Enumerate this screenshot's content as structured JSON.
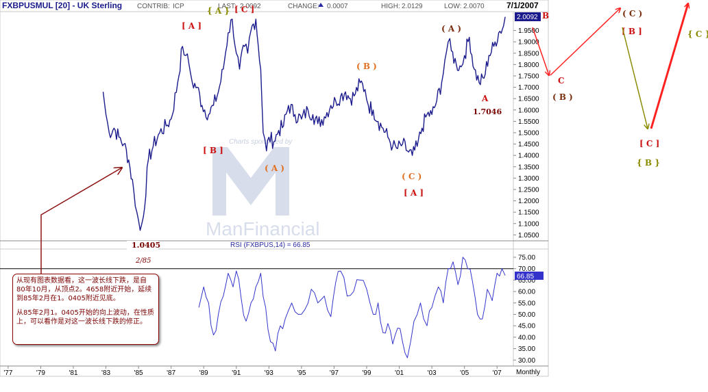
{
  "header": {
    "symbol": "FXBPUSMUL [20] - UK Sterling",
    "contrib_label": "CONTRIB:",
    "contrib_value": "ICP",
    "last_label": "LAST:",
    "last_value": "2.0092",
    "change_label": "CHANGE:",
    "change_value": "0.0007",
    "high_label": "HIGH:",
    "high_value": "2.0129",
    "low_label": "LOW:",
    "low_value": "2.0070",
    "date": "7/1/2007"
  },
  "watermark": {
    "sponsor_text": "Charts sponsored by",
    "brand": "ManFinancial"
  },
  "price_badge": "2.0092",
  "rsi_title": "RSI (FXBPUS,14) = 66.85",
  "rsi_badge": "66.85",
  "frequency_label": "Monthly",
  "colors": {
    "price_line": "#1a1a8c",
    "rsi_line": "#3333cc",
    "wave_red": "#cc1111",
    "wave_olive": "#8b8b00",
    "wave_orange": "#e07020",
    "wave_brown": "#7a3010",
    "arrow_red": "#ff2020",
    "arrow_olive": "#8b8b00",
    "arrow_darkred": "#8b1010"
  },
  "chart_data": [
    {
      "type": "line",
      "title": "FXBPUSMUL [20] - UK Sterling",
      "x_ticks": [
        "'77",
        "'79",
        "'81",
        "'83",
        "'85",
        "'87",
        "'89",
        "'91",
        "'93",
        "'95",
        "'97",
        "'99",
        "'01",
        "'03",
        "'05",
        "'07"
      ],
      "y_ticks": [
        "1.0500",
        "1.1000",
        "1.1500",
        "1.2000",
        "1.2500",
        "1.3000",
        "1.3500",
        "1.4000",
        "1.4500",
        "1.5000",
        "1.5500",
        "1.6000",
        "1.6500",
        "1.7000",
        "1.7500",
        "1.8000",
        "1.8500",
        "1.9000",
        "1.9500"
      ],
      "ylim": [
        1.03,
        2.03
      ],
      "xlim": [
        1976.5,
        2008.0
      ],
      "series": [
        {
          "x": [
            1982.83,
            1983.0,
            1983.2,
            1983.5,
            1983.8,
            1984.1,
            1984.4,
            1984.7,
            1984.9,
            1985.1,
            1985.3,
            1985.6,
            1985.9,
            1986.3,
            1986.7,
            1987.0,
            1987.4,
            1987.7,
            1987.9,
            1988.1,
            1988.3,
            1988.6,
            1988.9,
            1989.3,
            1989.6,
            1989.9,
            1990.2,
            1990.5,
            1990.75,
            1991.0,
            1991.2,
            1991.5,
            1991.7,
            1991.9,
            1992.2,
            1992.5,
            1992.65,
            1992.85,
            1993.0,
            1993.3,
            1993.6,
            1993.9,
            1994.2,
            1994.6,
            1995.0,
            1995.4,
            1995.7,
            1996.0,
            1996.4,
            1996.8,
            1997.1,
            1997.4,
            1997.7,
            1998.0,
            1998.3,
            1998.6,
            1998.9,
            1999.1,
            1999.4,
            1999.7,
            2000.0,
            2000.3,
            2000.6,
            2000.9,
            2001.2,
            2001.5,
            2001.8,
            2002.1,
            2002.4,
            2002.7,
            2003.0,
            2003.3,
            2003.6,
            2003.8,
            2004.0,
            2004.2,
            2004.5,
            2004.8,
            2005.0,
            2005.3,
            2005.6,
            2005.9,
            2006.2,
            2006.5,
            2006.8,
            2007.1,
            2007.4,
            2007.5
          ],
          "y": [
            1.68,
            1.58,
            1.5,
            1.52,
            1.48,
            1.45,
            1.38,
            1.25,
            1.15,
            1.07,
            1.13,
            1.38,
            1.44,
            1.5,
            1.53,
            1.56,
            1.72,
            1.88,
            1.84,
            1.8,
            1.72,
            1.7,
            1.62,
            1.58,
            1.62,
            1.68,
            1.78,
            1.94,
            2.0,
            1.85,
            1.78,
            1.88,
            1.85,
            1.95,
            2.0,
            1.78,
            1.5,
            1.42,
            1.48,
            1.46,
            1.51,
            1.53,
            1.62,
            1.58,
            1.56,
            1.6,
            1.58,
            1.54,
            1.57,
            1.62,
            1.64,
            1.66,
            1.68,
            1.65,
            1.67,
            1.72,
            1.69,
            1.62,
            1.6,
            1.55,
            1.52,
            1.48,
            1.44,
            1.43,
            1.45,
            1.42,
            1.4,
            1.44,
            1.52,
            1.58,
            1.58,
            1.64,
            1.72,
            1.82,
            1.9,
            1.86,
            1.8,
            1.79,
            1.84,
            1.92,
            1.78,
            1.72,
            1.74,
            1.84,
            1.88,
            1.94,
            1.97,
            2.01
          ]
        }
      ],
      "price_annotation": "1.0405",
      "date_annotation": "2/85",
      "low_annotation": "1.7046",
      "wave_labels": [
        {
          "text": "{ A }",
          "color": "#8b8b00"
        },
        {
          "text": "[ C ]",
          "color": "#cc1111"
        },
        {
          "text": "[ A ]",
          "color": "#cc1111"
        },
        {
          "text": "[ B ]",
          "color": "#cc1111"
        },
        {
          "text": "( A )",
          "color": "#e07020"
        },
        {
          "text": "( B )",
          "color": "#e07020"
        },
        {
          "text": "( C )",
          "color": "#e07020"
        },
        {
          "text": "[ A ]",
          "color": "#cc1111"
        },
        {
          "text": "( A )",
          "color": "#7a3010"
        },
        {
          "text": "A",
          "color": "#cc1111"
        },
        {
          "text": "B",
          "color": "#cc1111"
        },
        {
          "text": "C",
          "color": "#cc1111"
        },
        {
          "text": "( B )",
          "color": "#7a3010"
        },
        {
          "text": "( C )",
          "color": "#7a3010"
        },
        {
          "text": "[ B ]",
          "color": "#cc1111"
        },
        {
          "text": "[ C ]",
          "color": "#cc1111"
        },
        {
          "text": "{ B }",
          "color": "#8b8b00"
        },
        {
          "text": "{ C }",
          "color": "#8b8b00"
        }
      ]
    },
    {
      "type": "line",
      "title": "RSI (FXBPUS,14) = 66.85",
      "y_ticks": [
        "30.00",
        "35.00",
        "40.00",
        "45.00",
        "50.00",
        "55.00",
        "60.00",
        "65.00",
        "70.00",
        "75.00"
      ],
      "ylim": [
        28,
        78
      ],
      "reference_line": 70,
      "series": [
        {
          "x": [
            1988.7,
            1989.0,
            1989.3,
            1989.6,
            1989.9,
            1990.2,
            1990.5,
            1990.8,
            1991.0,
            1991.3,
            1991.6,
            1991.9,
            1992.2,
            1992.5,
            1992.8,
            1993.1,
            1993.4,
            1993.7,
            1994.0,
            1994.4,
            1994.8,
            1995.2,
            1995.6,
            1996.0,
            1996.4,
            1996.8,
            1997.1,
            1997.4,
            1997.8,
            1998.2,
            1998.6,
            1999.0,
            1999.4,
            1999.7,
            2000.0,
            2000.3,
            2000.6,
            2000.9,
            2001.2,
            2001.5,
            2001.9,
            2002.3,
            2002.7,
            2003.0,
            2003.4,
            2003.7,
            2004.0,
            2004.3,
            2004.6,
            2004.9,
            2005.2,
            2005.5,
            2005.8,
            2006.1,
            2006.4,
            2006.7,
            2007.0,
            2007.3,
            2007.5
          ],
          "y": [
            53,
            62,
            55,
            41,
            50,
            58,
            68,
            62,
            69,
            57,
            47,
            55,
            62,
            68,
            53,
            38,
            34,
            45,
            48,
            55,
            50,
            52,
            61,
            55,
            58,
            49,
            64,
            69,
            58,
            60,
            65,
            61,
            50,
            55,
            42,
            46,
            37,
            44,
            38,
            31,
            47,
            55,
            45,
            53,
            62,
            55,
            70,
            73,
            63,
            75,
            70,
            64,
            50,
            48,
            61,
            56,
            68,
            70,
            67
          ]
        }
      ]
    }
  ],
  "annotation_note": {
    "paragraph_1": "从现有图表数据看，这一波长线下跌，是自80年10月，从顶点2。4658附近开始，延续到85年2月在1。0405附近见底。",
    "paragraph_2": "从85年2月1。0405开始的向上波动，在性质上，可以看作是对这一波长线下跌的修正。"
  }
}
